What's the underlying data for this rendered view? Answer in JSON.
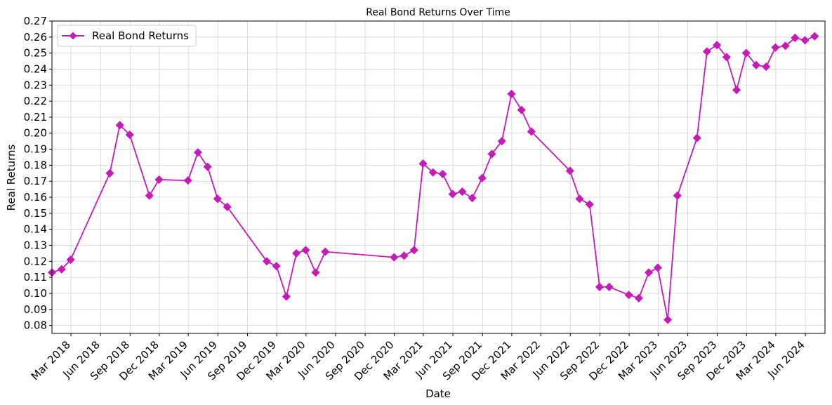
{
  "chart_data": {
    "type": "line",
    "title": "Real Bond Returns Over Time",
    "xlabel": "Date",
    "ylabel": "Real Returns",
    "xlim": [
      "2018-01-01",
      "2024-08-01"
    ],
    "ylim": [
      0.075,
      0.27
    ],
    "y_ticks": [
      0.08,
      0.09,
      0.1,
      0.11,
      0.12,
      0.13,
      0.14,
      0.15,
      0.16,
      0.17,
      0.18,
      0.19,
      0.2,
      0.21,
      0.22,
      0.23,
      0.24,
      0.25,
      0.26,
      0.27
    ],
    "x_ticks": [
      {
        "date": "2018-03-01",
        "label": "Mar 2018"
      },
      {
        "date": "2018-06-01",
        "label": "Jun 2018"
      },
      {
        "date": "2018-09-01",
        "label": "Sep 2018"
      },
      {
        "date": "2018-12-01",
        "label": "Dec 2018"
      },
      {
        "date": "2019-03-01",
        "label": "Mar 2019"
      },
      {
        "date": "2019-06-01",
        "label": "Jun 2019"
      },
      {
        "date": "2019-09-01",
        "label": "Sep 2019"
      },
      {
        "date": "2019-12-01",
        "label": "Dec 2019"
      },
      {
        "date": "2020-03-01",
        "label": "Mar 2020"
      },
      {
        "date": "2020-06-01",
        "label": "Jun 2020"
      },
      {
        "date": "2020-09-01",
        "label": "Sep 2020"
      },
      {
        "date": "2020-12-01",
        "label": "Dec 2020"
      },
      {
        "date": "2021-03-01",
        "label": "Mar 2021"
      },
      {
        "date": "2021-06-01",
        "label": "Jun 2021"
      },
      {
        "date": "2021-09-01",
        "label": "Sep 2021"
      },
      {
        "date": "2021-12-01",
        "label": "Dec 2021"
      },
      {
        "date": "2022-03-01",
        "label": "Mar 2022"
      },
      {
        "date": "2022-06-01",
        "label": "Jun 2022"
      },
      {
        "date": "2022-09-01",
        "label": "Sep 2022"
      },
      {
        "date": "2022-12-01",
        "label": "Dec 2022"
      },
      {
        "date": "2023-03-01",
        "label": "Mar 2023"
      },
      {
        "date": "2023-06-01",
        "label": "Jun 2023"
      },
      {
        "date": "2023-09-01",
        "label": "Sep 2023"
      },
      {
        "date": "2023-12-01",
        "label": "Dec 2023"
      },
      {
        "date": "2024-03-01",
        "label": "Mar 2024"
      },
      {
        "date": "2024-06-01",
        "label": "Jun 2024"
      }
    ],
    "grid": true,
    "legend_position": "top-left",
    "series": [
      {
        "name": "Real Bond Returns",
        "color": "#c71ab8",
        "marker": "diamond",
        "points": [
          {
            "x": "2018-01-01",
            "y": 0.113
          },
          {
            "x": "2018-01-31",
            "y": 0.115
          },
          {
            "x": "2018-02-28",
            "y": 0.121
          },
          {
            "x": "2018-06-30",
            "y": 0.175
          },
          {
            "x": "2018-07-31",
            "y": 0.205
          },
          {
            "x": "2018-08-31",
            "y": 0.199
          },
          {
            "x": "2018-10-31",
            "y": 0.161
          },
          {
            "x": "2018-11-30",
            "y": 0.171
          },
          {
            "x": "2019-02-28",
            "y": 0.1705
          },
          {
            "x": "2019-03-31",
            "y": 0.188
          },
          {
            "x": "2019-04-30",
            "y": 0.179
          },
          {
            "x": "2019-05-31",
            "y": 0.159
          },
          {
            "x": "2019-06-30",
            "y": 0.154
          },
          {
            "x": "2019-10-31",
            "y": 0.12
          },
          {
            "x": "2019-11-30",
            "y": 0.117
          },
          {
            "x": "2019-12-31",
            "y": 0.098
          },
          {
            "x": "2020-01-31",
            "y": 0.125
          },
          {
            "x": "2020-02-29",
            "y": 0.127
          },
          {
            "x": "2020-03-31",
            "y": 0.113
          },
          {
            "x": "2020-04-30",
            "y": 0.126
          },
          {
            "x": "2020-11-30",
            "y": 0.1225
          },
          {
            "x": "2020-12-31",
            "y": 0.1235
          },
          {
            "x": "2021-01-31",
            "y": 0.127
          },
          {
            "x": "2021-02-28",
            "y": 0.181
          },
          {
            "x": "2021-03-31",
            "y": 0.1755
          },
          {
            "x": "2021-04-30",
            "y": 0.1745
          },
          {
            "x": "2021-05-31",
            "y": 0.162
          },
          {
            "x": "2021-06-30",
            "y": 0.1635
          },
          {
            "x": "2021-07-31",
            "y": 0.1595
          },
          {
            "x": "2021-08-31",
            "y": 0.172
          },
          {
            "x": "2021-09-30",
            "y": 0.187
          },
          {
            "x": "2021-10-31",
            "y": 0.195
          },
          {
            "x": "2021-11-30",
            "y": 0.2245
          },
          {
            "x": "2021-12-31",
            "y": 0.2145
          },
          {
            "x": "2022-01-31",
            "y": 0.201
          },
          {
            "x": "2022-05-31",
            "y": 0.1765
          },
          {
            "x": "2022-06-30",
            "y": 0.159
          },
          {
            "x": "2022-07-31",
            "y": 0.1555
          },
          {
            "x": "2022-08-31",
            "y": 0.104
          },
          {
            "x": "2022-09-30",
            "y": 0.104
          },
          {
            "x": "2022-11-30",
            "y": 0.099
          },
          {
            "x": "2022-12-31",
            "y": 0.097
          },
          {
            "x": "2023-01-31",
            "y": 0.113
          },
          {
            "x": "2023-02-28",
            "y": 0.116
          },
          {
            "x": "2023-03-31",
            "y": 0.0835
          },
          {
            "x": "2023-04-30",
            "y": 0.161
          },
          {
            "x": "2023-06-30",
            "y": 0.197
          },
          {
            "x": "2023-07-31",
            "y": 0.251
          },
          {
            "x": "2023-08-31",
            "y": 0.255
          },
          {
            "x": "2023-09-30",
            "y": 0.2475
          },
          {
            "x": "2023-10-31",
            "y": 0.227
          },
          {
            "x": "2023-11-30",
            "y": 0.25
          },
          {
            "x": "2023-12-31",
            "y": 0.2425
          },
          {
            "x": "2024-01-31",
            "y": 0.2415
          },
          {
            "x": "2024-02-29",
            "y": 0.2535
          },
          {
            "x": "2024-03-31",
            "y": 0.2545
          },
          {
            "x": "2024-04-30",
            "y": 0.2595
          },
          {
            "x": "2024-05-31",
            "y": 0.258
          },
          {
            "x": "2024-06-30",
            "y": 0.2605
          }
        ]
      }
    ]
  }
}
